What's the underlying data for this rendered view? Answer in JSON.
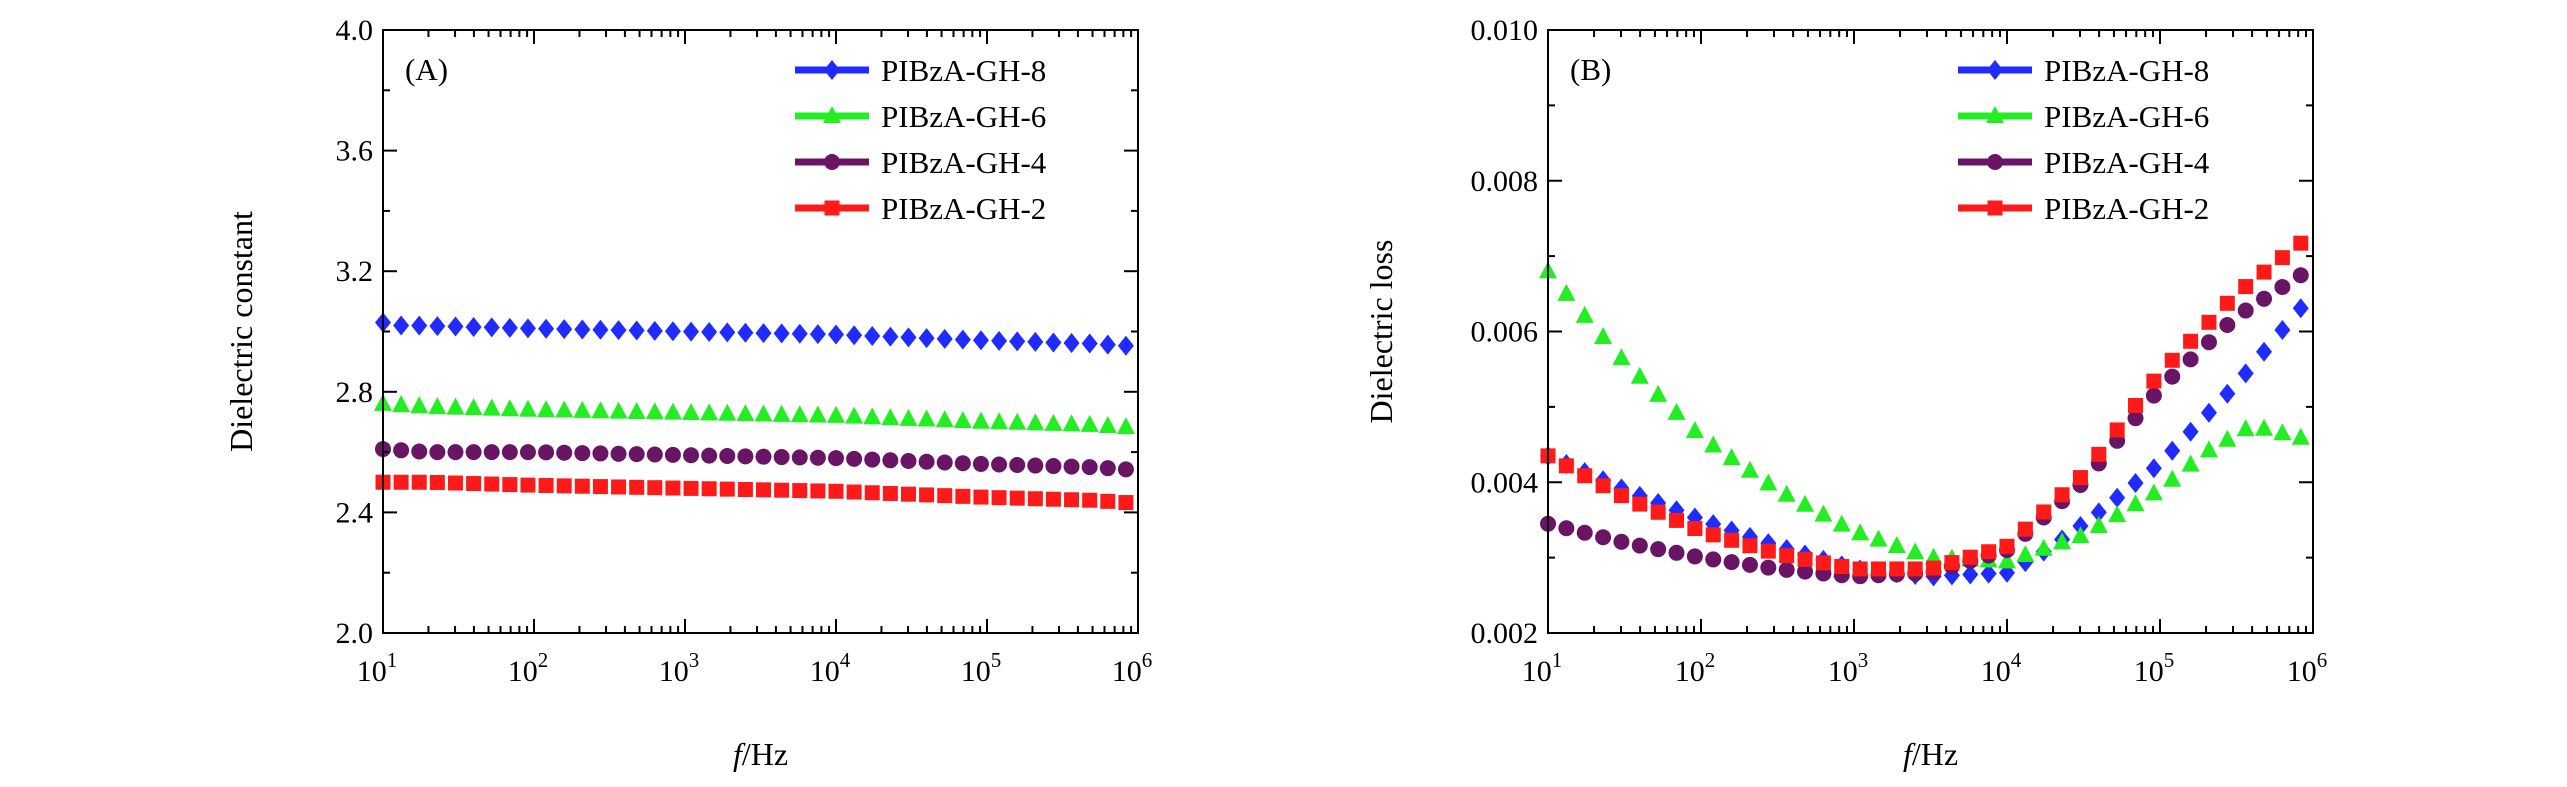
{
  "chart_data": [
    {
      "type": "scatter",
      "panel_label": "(A)",
      "xlabel": {
        "italic": "f",
        "rest": "/Hz"
      },
      "ylabel": "Dielectric constant",
      "xscale": "log",
      "xlim": [
        10,
        1000000
      ],
      "ylim": [
        2.0,
        4.0
      ],
      "x_ticks": [
        {
          "value": 10,
          "base": "10",
          "exp": "1"
        },
        {
          "value": 100,
          "base": "10",
          "exp": "2"
        },
        {
          "value": 1000,
          "base": "10",
          "exp": "3"
        },
        {
          "value": 10000,
          "base": "10",
          "exp": "4"
        },
        {
          "value": 100000,
          "base": "10",
          "exp": "5"
        },
        {
          "value": 1000000,
          "base": "10",
          "exp": "6"
        }
      ],
      "y_ticks": [
        {
          "value": 2.0,
          "label": "2.0"
        },
        {
          "value": 2.4,
          "label": "2.4"
        },
        {
          "value": 2.8,
          "label": "2.8"
        },
        {
          "value": 3.2,
          "label": "3.2"
        },
        {
          "value": 3.6,
          "label": "3.6"
        },
        {
          "value": 4.0,
          "label": "4.0"
        }
      ],
      "legend_position": "top-right",
      "series": [
        {
          "name": "PIBzA-GH-8",
          "color": "#1f2bff",
          "marker": "diamond",
          "x_log10": [
            1.0,
            5.0
          ],
          "values": [
            [
              1.0,
              3.03
            ],
            [
              1.1,
              3.02
            ],
            [
              1.2,
              3.02
            ],
            [
              2.0,
              3.01
            ],
            [
              3.0,
              3.0
            ],
            [
              4.0,
              2.99
            ],
            [
              5.0,
              2.97
            ],
            [
              5.7,
              2.96
            ],
            [
              6.0,
              2.95
            ]
          ]
        },
        {
          "name": "PIBzA-GH-6",
          "color": "#22ee22",
          "marker": "triangle",
          "values": [
            [
              1.0,
              2.76
            ],
            [
              1.3,
              2.75
            ],
            [
              2.0,
              2.74
            ],
            [
              3.0,
              2.73
            ],
            [
              4.0,
              2.72
            ],
            [
              5.0,
              2.7
            ],
            [
              5.7,
              2.69
            ],
            [
              6.0,
              2.68
            ]
          ]
        },
        {
          "name": "PIBzA-GH-4",
          "color": "#6a1466",
          "marker": "circle",
          "values": [
            [
              1.0,
              2.61
            ],
            [
              1.3,
              2.6
            ],
            [
              2.0,
              2.6
            ],
            [
              3.0,
              2.59
            ],
            [
              4.0,
              2.58
            ],
            [
              5.0,
              2.56
            ],
            [
              5.7,
              2.55
            ],
            [
              6.0,
              2.54
            ]
          ]
        },
        {
          "name": "PIBzA-GH-2",
          "color": "#ff1a1a",
          "marker": "square",
          "values": [
            [
              1.0,
              2.5
            ],
            [
              1.3,
              2.5
            ],
            [
              2.0,
              2.49
            ],
            [
              3.0,
              2.48
            ],
            [
              4.0,
              2.47
            ],
            [
              5.0,
              2.45
            ],
            [
              5.7,
              2.44
            ],
            [
              6.0,
              2.43
            ]
          ]
        }
      ]
    },
    {
      "type": "scatter",
      "panel_label": "(B)",
      "xlabel": {
        "italic": "f",
        "rest": "/Hz"
      },
      "ylabel": "Dielectric loss",
      "xscale": "log",
      "xlim": [
        10,
        1000000
      ],
      "ylim": [
        0.002,
        0.01
      ],
      "x_ticks": [
        {
          "value": 10,
          "base": "10",
          "exp": "1"
        },
        {
          "value": 100,
          "base": "10",
          "exp": "2"
        },
        {
          "value": 1000,
          "base": "10",
          "exp": "3"
        },
        {
          "value": 10000,
          "base": "10",
          "exp": "4"
        },
        {
          "value": 100000,
          "base": "10",
          "exp": "5"
        },
        {
          "value": 1000000,
          "base": "10",
          "exp": "6"
        }
      ],
      "y_ticks": [
        {
          "value": 0.002,
          "label": "0.002"
        },
        {
          "value": 0.004,
          "label": "0.004"
        },
        {
          "value": 0.006,
          "label": "0.006"
        },
        {
          "value": 0.008,
          "label": "0.008"
        },
        {
          "value": 0.01,
          "label": "0.010"
        }
      ],
      "legend_position": "top-right",
      "series": [
        {
          "name": "PIBzA-GH-8",
          "color": "#1f2bff",
          "marker": "diamond",
          "values": [
            [
              1.0,
              0.00435
            ],
            [
              1.5,
              0.0039
            ],
            [
              2.0,
              0.0035
            ],
            [
              2.5,
              0.00315
            ],
            [
              3.0,
              0.00285
            ],
            [
              3.5,
              0.00275
            ],
            [
              4.0,
              0.0028
            ],
            [
              4.3,
              0.00315
            ],
            [
              4.6,
              0.0036
            ],
            [
              5.0,
              0.00425
            ],
            [
              5.5,
              0.0053
            ],
            [
              6.0,
              0.0065
            ]
          ]
        },
        {
          "name": "PIBzA-GH-6",
          "color": "#22ee22",
          "marker": "triangle",
          "values": [
            [
              1.0,
              0.0068
            ],
            [
              1.2,
              0.0063
            ],
            [
              1.5,
              0.0056
            ],
            [
              2.0,
              0.0046
            ],
            [
              2.5,
              0.0039
            ],
            [
              3.0,
              0.00335
            ],
            [
              3.5,
              0.003
            ],
            [
              4.0,
              0.00295
            ],
            [
              4.5,
              0.0033
            ],
            [
              5.0,
              0.0039
            ],
            [
              5.3,
              0.0044
            ],
            [
              5.6,
              0.00475
            ],
            [
              6.0,
              0.00455
            ]
          ]
        },
        {
          "name": "PIBzA-GH-4",
          "color": "#6a1466",
          "marker": "circle",
          "values": [
            [
              1.0,
              0.00345
            ],
            [
              1.5,
              0.0032
            ],
            [
              2.0,
              0.003
            ],
            [
              2.5,
              0.00285
            ],
            [
              3.0,
              0.00275
            ],
            [
              3.5,
              0.0028
            ],
            [
              4.0,
              0.0031
            ],
            [
              4.5,
              0.004
            ],
            [
              5.0,
              0.00525
            ],
            [
              5.5,
              0.0062
            ],
            [
              6.0,
              0.00685
            ]
          ]
        },
        {
          "name": "PIBzA-GH-2",
          "color": "#ff1a1a",
          "marker": "square",
          "values": [
            [
              1.0,
              0.00435
            ],
            [
              1.5,
              0.0038
            ],
            [
              2.0,
              0.00335
            ],
            [
              2.5,
              0.00305
            ],
            [
              3.0,
              0.00285
            ],
            [
              3.5,
              0.00285
            ],
            [
              4.0,
              0.00315
            ],
            [
              4.5,
              0.0041
            ],
            [
              5.0,
              0.00545
            ],
            [
              5.5,
              0.0065
            ],
            [
              6.0,
              0.0073
            ]
          ]
        }
      ]
    }
  ]
}
